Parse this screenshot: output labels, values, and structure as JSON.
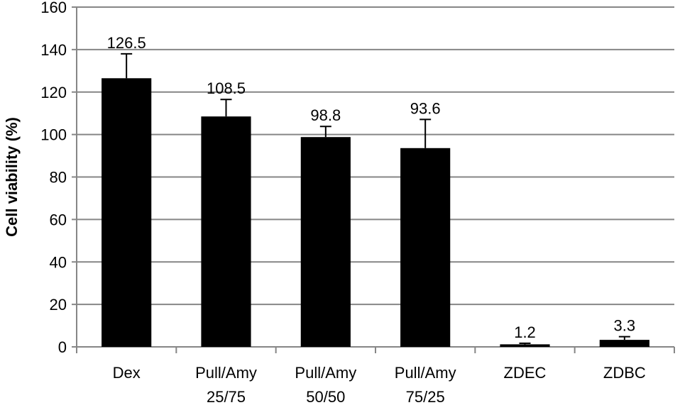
{
  "chart_data": {
    "type": "bar",
    "title": "",
    "xlabel": "",
    "ylabel": "Cell viability (%)",
    "ylim": [
      0,
      160
    ],
    "yticks": [
      0,
      20,
      40,
      60,
      80,
      100,
      120,
      140,
      160
    ],
    "grid": true,
    "legend": "none",
    "categories": [
      [
        "Dex"
      ],
      [
        "Pull/Amy",
        "25/75"
      ],
      [
        "Pull/Amy",
        "50/50"
      ],
      [
        "Pull/Amy",
        "75/25"
      ],
      [
        "ZDEC"
      ],
      [
        "ZDBC"
      ]
    ],
    "values": [
      126.5,
      108.5,
      98.8,
      93.6,
      1.2,
      3.3
    ],
    "error": [
      11.5,
      8,
      5,
      13.5,
      0.5,
      1.5
    ],
    "data_labels": [
      "126.5",
      "108.5",
      "98.8",
      "93.6",
      "1.2",
      "3.3"
    ],
    "colors": {
      "bar": "#000000",
      "grid": "#868686",
      "axis": "#868686",
      "error_bar": "#000000"
    }
  }
}
